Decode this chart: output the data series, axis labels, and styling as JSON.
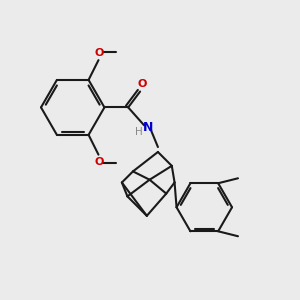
{
  "background_color": "#ebebeb",
  "bond_color": "#1a1a1a",
  "atom_colors": {
    "O": "#cc0000",
    "N": "#0000cc",
    "H": "#888888",
    "C": "#1a1a1a"
  },
  "figsize": [
    3.0,
    3.0
  ],
  "dpi": 100
}
